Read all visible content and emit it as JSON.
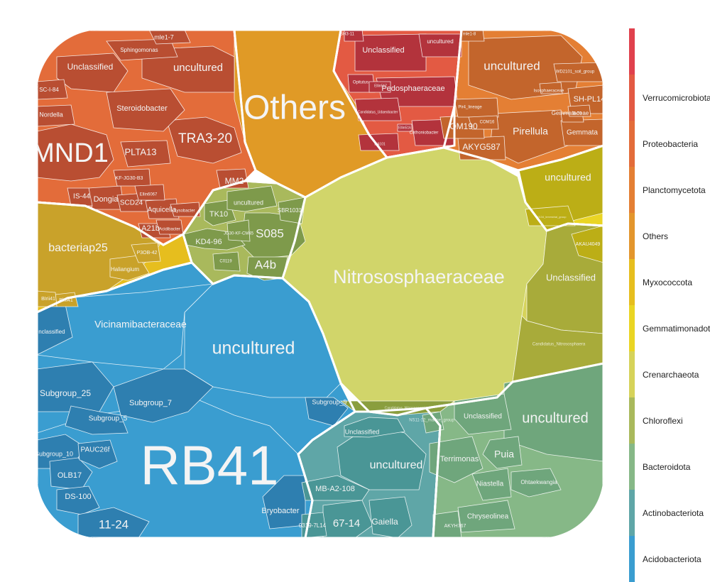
{
  "chart_data": {
    "type": "voronoi-treemap",
    "legend": {
      "position": "right",
      "items": [
        {
          "name": "",
          "color": "#e0414d"
        },
        {
          "name": "Verrucomicrobiota",
          "color": "#e35a43"
        },
        {
          "name": "Proteobacteria",
          "color": "#e36c3a"
        },
        {
          "name": "Planctomycetota",
          "color": "#e47f34"
        },
        {
          "name": "Others",
          "color": "#e3962d"
        },
        {
          "name": "Myxococcota",
          "color": "#e6be1e"
        },
        {
          "name": "Gemmatimonadota",
          "color": "#ead524"
        },
        {
          "name": "Crenarchaeota",
          "color": "#d6d35a"
        },
        {
          "name": "Chloroflexi",
          "color": "#a9b95c"
        },
        {
          "name": "Bacteroidota",
          "color": "#86b887"
        },
        {
          "name": "Actinobacteriota",
          "color": "#5fa6a7"
        },
        {
          "name": "Acidobacteriota",
          "color": "#3a9dd0"
        }
      ]
    },
    "cells": [
      {
        "phylum": "Crenarchaeota",
        "label": "Nitrososphaeraceae",
        "color": "#d1d56a"
      },
      {
        "phylum": "Crenarchaeota",
        "label": "Unclassified",
        "color": "#a8ab3a"
      },
      {
        "phylum": "Crenarchaeota",
        "label": "Candidatus_Nitrososphaera",
        "color": "#a8ab3a"
      },
      {
        "phylum": "Acidobacteriota",
        "label": "RB41",
        "color": "#3a9dd0"
      },
      {
        "phylum": "Acidobacteriota",
        "label": "uncultured",
        "color": "#3a9dd0"
      },
      {
        "phylum": "Acidobacteriota",
        "label": "Vicinamibacteraceae",
        "color": "#3a9dd0"
      },
      {
        "phylum": "Acidobacteriota",
        "label": "Subgroup_7",
        "color": "#2e7fb0"
      },
      {
        "phylum": "Acidobacteriota",
        "label": "Subgroup_25",
        "color": "#2e7fb0"
      },
      {
        "phylum": "Acidobacteriota",
        "label": "Subgroup_5",
        "color": "#2e7fb0"
      },
      {
        "phylum": "Acidobacteriota",
        "label": "Subgroup_10",
        "color": "#2e7fb0"
      },
      {
        "phylum": "Acidobacteriota",
        "label": "Unclassified",
        "color": "#2e7fb0"
      },
      {
        "phylum": "Acidobacteriota",
        "label": "OLB17",
        "color": "#2e7fb0"
      },
      {
        "phylum": "Acidobacteriota",
        "label": "PAUC26f",
        "color": "#2e7fb0"
      },
      {
        "phylum": "Acidobacteriota",
        "label": "DS-100",
        "color": "#2e7fb0"
      },
      {
        "phylum": "Acidobacteriota",
        "label": "11-24",
        "color": "#2e7fb0"
      },
      {
        "phylum": "Acidobacteriota",
        "label": "Bryobacter",
        "color": "#2e7fb0"
      },
      {
        "phylum": "Acidobacteriota",
        "label": "Subgroup_9",
        "color": "#2e7fb0"
      },
      {
        "phylum": "Actinobacteriota",
        "label": "uncultured",
        "color": "#4a9696"
      },
      {
        "phylum": "Actinobacteriota",
        "label": "Unclassified",
        "color": "#4a9696"
      },
      {
        "phylum": "Actinobacteriota",
        "label": "MB-A2-108",
        "color": "#4a9696"
      },
      {
        "phylum": "Actinobacteriota",
        "label": "67-14",
        "color": "#4a9696"
      },
      {
        "phylum": "Actinobacteriota",
        "label": "Gaiella",
        "color": "#4a9696"
      },
      {
        "phylum": "Actinobacteriota",
        "label": "0319-7L14",
        "color": "#4a9696"
      },
      {
        "phylum": "Bacteroidota",
        "label": "uncultured",
        "color": "#6fa67c"
      },
      {
        "phylum": "Bacteroidota",
        "label": "Unclassified",
        "color": "#6fa67c"
      },
      {
        "phylum": "Bacteroidota",
        "label": "Puia",
        "color": "#6fa67c"
      },
      {
        "phylum": "Bacteroidota",
        "label": "Terrimonas",
        "color": "#6fa67c"
      },
      {
        "phylum": "Bacteroidota",
        "label": "Niastella",
        "color": "#6fa67c"
      },
      {
        "phylum": "Bacteroidota",
        "label": "Ohtaekwangia",
        "color": "#6fa67c"
      },
      {
        "phylum": "Bacteroidota",
        "label": "Chryseolinea",
        "color": "#6fa67c"
      },
      {
        "phylum": "Bacteroidota",
        "label": "AKYH767",
        "color": "#6fa67c"
      },
      {
        "phylum": "Bacteroidota",
        "label": "NS11-12_marine_group",
        "color": "#6fa67c"
      },
      {
        "phylum": "Chloroflexi",
        "label": "S085",
        "color": "#7e9a4b"
      },
      {
        "phylum": "Chloroflexi",
        "label": "A4b",
        "color": "#7e9a4b"
      },
      {
        "phylum": "Chloroflexi",
        "label": "KD4-96",
        "color": "#7e9a4b"
      },
      {
        "phylum": "Chloroflexi",
        "label": "TK10",
        "color": "#7e9a4b"
      },
      {
        "phylum": "Chloroflexi",
        "label": "uncultured",
        "color": "#7e9a4b"
      },
      {
        "phylum": "Chloroflexi",
        "label": "SBR1031",
        "color": "#7e9a4b"
      },
      {
        "phylum": "Chloroflexi",
        "label": "JG30-KF-CM45",
        "color": "#7e9a4b"
      },
      {
        "phylum": "Chloroflexi",
        "label": "C0119",
        "color": "#7e9a4b"
      },
      {
        "phylum": "Chloroflexi",
        "label": "Candidatus_Nitrosocosmicus",
        "color": "#8a9e3e"
      },
      {
        "phylum": "Myxococcota",
        "label": "bacteriap25",
        "color": "#c9a22a"
      },
      {
        "phylum": "Myxococcota",
        "label": "Haliangium",
        "color": "#c9a22a"
      },
      {
        "phylum": "Myxococcota",
        "label": "P3OB-42",
        "color": "#c9a22a"
      },
      {
        "phylum": "Myxococcota",
        "label": "Blrii41",
        "color": "#c9a22a"
      },
      {
        "phylum": "Myxococcota",
        "label": "BIrii41",
        "color": "#c9a22a"
      },
      {
        "phylum": "Gemmatimonadota",
        "label": "uncultured",
        "color": "#bcae16"
      },
      {
        "phylum": "Gemmatimonadota",
        "label": "AKAU4049",
        "color": "#bcae16"
      },
      {
        "phylum": "Gemmatimonadota",
        "label": "S0134_terrestrial_group",
        "color": "#bcae16"
      },
      {
        "phylum": "Others",
        "label": "Others",
        "color": "#e09a26"
      },
      {
        "phylum": "Proteobacteria",
        "label": "MND1",
        "color": "#b94e32"
      },
      {
        "phylum": "Proteobacteria",
        "label": "TRA3-20",
        "color": "#b94e32"
      },
      {
        "phylum": "Proteobacteria",
        "label": "Unclassified",
        "color": "#b94e32"
      },
      {
        "phylum": "Proteobacteria",
        "label": "uncultured",
        "color": "#b94e32"
      },
      {
        "phylum": "Proteobacteria",
        "label": "Steroidobacter",
        "color": "#b94e32"
      },
      {
        "phylum": "Proteobacteria",
        "label": "Sphingomonas",
        "color": "#b94e32"
      },
      {
        "phylum": "Proteobacteria",
        "label": "mle1-7",
        "color": "#b94e32"
      },
      {
        "phylum": "Proteobacteria",
        "label": "Nordella",
        "color": "#b94e32"
      },
      {
        "phylum": "Proteobacteria",
        "label": "SC-I-84",
        "color": "#b94e32"
      },
      {
        "phylum": "Proteobacteria",
        "label": "PLTA13",
        "color": "#b94e32"
      },
      {
        "phylum": "Proteobacteria",
        "label": "Dongia",
        "color": "#b94e32"
      },
      {
        "phylum": "Proteobacteria",
        "label": "IS-44",
        "color": "#b94e32"
      },
      {
        "phylum": "Proteobacteria",
        "label": "SCD24",
        "color": "#b94e32"
      },
      {
        "phylum": "Proteobacteria",
        "label": "Aquicella",
        "color": "#b94e32"
      },
      {
        "phylum": "Proteobacteria",
        "label": "MM2",
        "color": "#b94e32"
      },
      {
        "phylum": "Proteobacteria",
        "label": "A21b",
        "color": "#b94e32"
      },
      {
        "phylum": "Proteobacteria",
        "label": "KF-JG30-B3",
        "color": "#b94e32"
      },
      {
        "phylum": "Proteobacteria",
        "label": "Acidibacter",
        "color": "#b94e32"
      },
      {
        "phylum": "Proteobacteria",
        "label": "Ellin6067",
        "color": "#b94e32"
      },
      {
        "phylum": "Proteobacteria",
        "label": "Lysobacter",
        "color": "#b94e32"
      },
      {
        "phylum": "Verrucomicrobiota",
        "label": "Unclassified",
        "color": "#b3333c"
      },
      {
        "phylum": "Verrucomicrobiota",
        "label": "uncultured",
        "color": "#b3333c"
      },
      {
        "phylum": "Verrucomicrobiota",
        "label": "Pedosphaeraceae",
        "color": "#b3333c"
      },
      {
        "phylum": "Verrucomicrobiota",
        "label": "Chthoniobacter",
        "color": "#b3333c"
      },
      {
        "phylum": "Verrucomicrobiota",
        "label": "Candidatus_Udaeobacter",
        "color": "#b3333c"
      },
      {
        "phylum": "Verrucomicrobiota",
        "label": "Opitutus",
        "color": "#b3333c"
      },
      {
        "phylum": "Verrucomicrobiota",
        "label": "SH3-11",
        "color": "#b3333c"
      },
      {
        "phylum": "Verrucomicrobiota",
        "label": "DA101",
        "color": "#b3333c"
      },
      {
        "phylum": "Verrucomicrobiota",
        "label": "Ellin517",
        "color": "#b3333c"
      },
      {
        "phylum": "Verrucomicrobiota",
        "label": "Ellin516",
        "color": "#b3333c"
      },
      {
        "phylum": "Planctomycetota",
        "label": "uncultured",
        "color": "#c3652c"
      },
      {
        "phylum": "Planctomycetota",
        "label": "Pirellula",
        "color": "#c3652c"
      },
      {
        "phylum": "Planctomycetota",
        "label": "AKYG587",
        "color": "#c3652c"
      },
      {
        "phylum": "Planctomycetota",
        "label": "OM190",
        "color": "#c3652c"
      },
      {
        "phylum": "Planctomycetota",
        "label": "SH-PL14",
        "color": "#c3652c"
      },
      {
        "phylum": "Planctomycetota",
        "label": "Gemmata",
        "color": "#c3652c"
      },
      {
        "phylum": "Planctomycetota",
        "label": "WD2101_soil_group",
        "color": "#c3652c"
      },
      {
        "phylum": "Planctomycetota",
        "label": "Pir4_lineage",
        "color": "#c3652c"
      },
      {
        "phylum": "Planctomycetota",
        "label": "COM16",
        "color": "#c3652c"
      },
      {
        "phylum": "Planctomycetota",
        "label": "Gemmataceae",
        "color": "#c3652c"
      },
      {
        "phylum": "Planctomycetota",
        "label": "mle1-8",
        "color": "#c3652c"
      },
      {
        "phylum": "Planctomycetota",
        "label": "Isosphaeraceae",
        "color": "#c3652c"
      },
      {
        "phylum": "Planctomycetota",
        "label": "B-70",
        "color": "#c3652c"
      }
    ]
  }
}
